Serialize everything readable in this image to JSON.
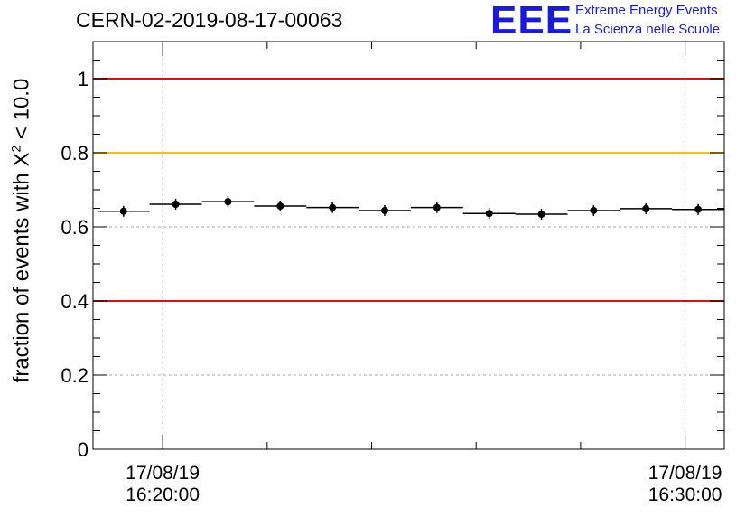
{
  "header": {
    "title": "CERN-02-2019-08-17-00063",
    "logo_text": "EEE",
    "logo_line1": "Extreme Energy Events",
    "logo_line2": "La Scienza nelle Scuole"
  },
  "colors": {
    "logo": "#1a1adc",
    "red_line": "#e01010",
    "orange_line": "#ffbf00",
    "grid": "#aaaaaa",
    "data": "#000000"
  },
  "chart_data": {
    "type": "scatter",
    "title": "CERN-02-2019-08-17-00063",
    "ylabel_prefix": "fraction of events with X",
    "ylabel_sup": "2",
    "ylabel_suffix": " < 10.0",
    "xlim": [
      "16:18:40",
      "16:30:45"
    ],
    "ylim": [
      0,
      1.1
    ],
    "grid": true,
    "y_ticks": [
      {
        "value": 0,
        "label": "0"
      },
      {
        "value": 0.2,
        "label": "0.2"
      },
      {
        "value": 0.4,
        "label": "0.4"
      },
      {
        "value": 0.6,
        "label": "0.6"
      },
      {
        "value": 0.8,
        "label": "0.8"
      },
      {
        "value": 1.0,
        "label": "1"
      }
    ],
    "x_ticks": [
      {
        "time": "16:20:00",
        "date_label": "17/08/19",
        "time_label": "16:20:00"
      },
      {
        "time": "16:30:00",
        "date_label": "17/08/19",
        "time_label": "16:30:00"
      }
    ],
    "reference_lines": [
      {
        "y": 1.0,
        "color": "#e01010"
      },
      {
        "y": 0.8,
        "color": "#ffbf00"
      },
      {
        "y": 0.4,
        "color": "#e01010"
      }
    ],
    "series": [
      {
        "bin_width_min": 1.0,
        "points": [
          {
            "x": "16:19:15",
            "y": 0.642
          },
          {
            "x": "16:20:15",
            "y": 0.661
          },
          {
            "x": "16:21:15",
            "y": 0.668
          },
          {
            "x": "16:22:15",
            "y": 0.656
          },
          {
            "x": "16:23:15",
            "y": 0.652
          },
          {
            "x": "16:24:15",
            "y": 0.644
          },
          {
            "x": "16:25:15",
            "y": 0.652
          },
          {
            "x": "16:26:15",
            "y": 0.636
          },
          {
            "x": "16:27:15",
            "y": 0.634
          },
          {
            "x": "16:28:15",
            "y": 0.644
          },
          {
            "x": "16:29:15",
            "y": 0.649
          },
          {
            "x": "16:30:15",
            "y": 0.647
          }
        ]
      }
    ]
  }
}
